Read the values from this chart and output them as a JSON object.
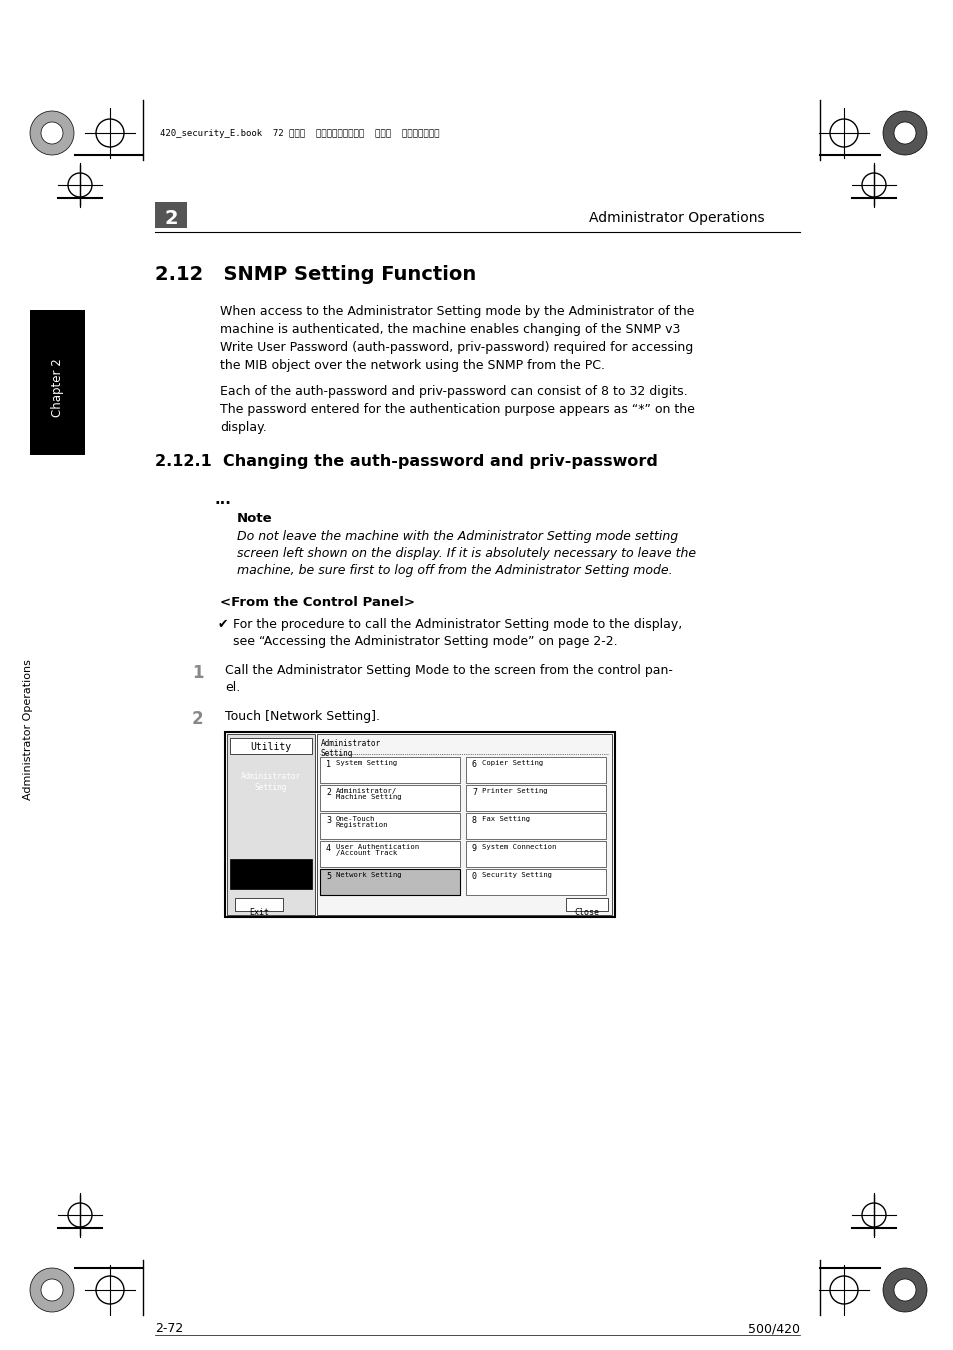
{
  "bg_color": "#ffffff",
  "header_text": "Administrator Operations",
  "chapter_num": "2",
  "section_title": "2.12   SNMP Setting Function",
  "para1": "When access to the Administrator Setting mode by the Administrator of the\nmachine is authenticated, the machine enables changing of the SNMP v3\nWrite User Password (auth-password, priv-password) required for accessing\nthe MIB object over the network using the SNMP from the PC.",
  "para2": "Each of the auth-password and priv-password can consist of 8 to 32 digits.\nThe password entered for the authentication purpose appears as “*” on the\ndisplay.",
  "subsection_title": "2.12.1  Changing the auth-password and priv-password",
  "note_dots": "...",
  "note_label": "Note",
  "note_text": "Do not leave the machine with the Administrator Setting mode setting\nscreen left shown on the display. If it is absolutely necessary to leave the\nmachine, be sure first to log off from the Administrator Setting mode.",
  "from_panel": "<From the Control Panel>",
  "checkmark_text": "For the procedure to call the Administrator Setting mode to the display,\nsee “Accessing the Administrator Setting mode” on page 2-2.",
  "step1_num": "1",
  "step1_text": "Call the Administrator Setting Mode to the screen from the control pan-\nel.",
  "step2_num": "2",
  "step2_text": "Touch [Network Setting].",
  "footer_left": "2-72",
  "footer_right": "500/420",
  "header_file": "420_security_E.book  72 ページ  ２００７年３月７日  水曜日  午後３時１５分",
  "chapter_label": "Chapter 2",
  "side_label": "Administrator Operations",
  "step_num_color": "#888888"
}
